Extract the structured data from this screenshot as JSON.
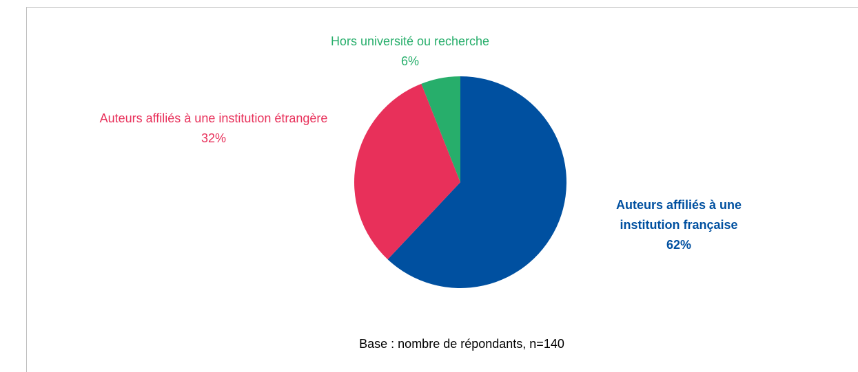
{
  "chart_data": {
    "type": "pie",
    "categories": [
      "Auteurs affiliés à une institution française",
      "Auteurs affiliés à une institution étrangère",
      "Hors université ou recherche"
    ],
    "values": [
      62,
      32,
      6
    ],
    "value_labels": [
      "62%",
      "32%",
      "6%"
    ],
    "colors": [
      "#0050a0",
      "#e8305a",
      "#27ae6b"
    ],
    "note": "Base : nombre de répondants, n=140"
  }
}
